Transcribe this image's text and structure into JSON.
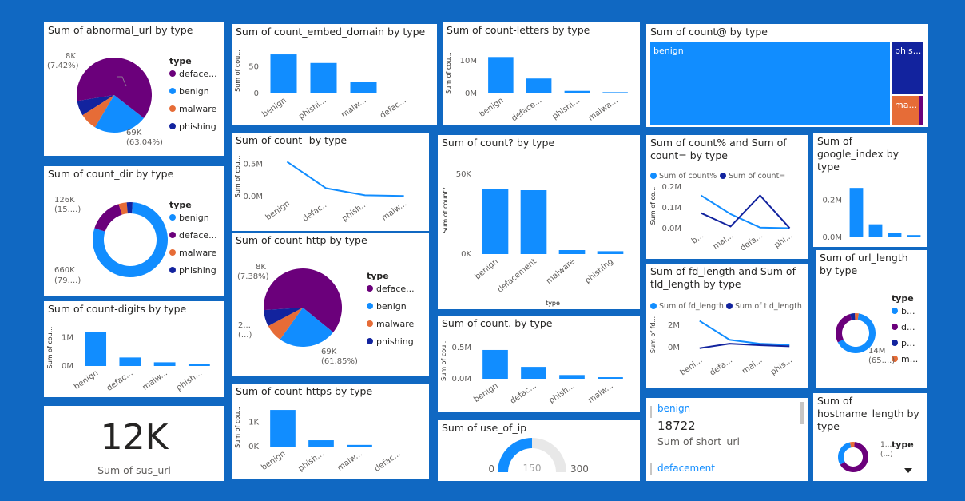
{
  "colors": {
    "purple": "#6b007b",
    "blue": "#118dff",
    "orange": "#e66c37",
    "navy": "#12239e",
    "axis": "#605e5c",
    "text": "#252423"
  },
  "chart_data": [
    {
      "id": "abnormal",
      "type": "pie",
      "title": "Sum of abnormal_url by type",
      "legend_title": "type",
      "legend": [
        "deface...",
        "benign",
        "malware",
        "phishing"
      ],
      "slices": [
        {
          "name": "defacement",
          "pct": 63.04
        },
        {
          "name": "benign",
          "pct": 23.0
        },
        {
          "name": "malware",
          "pct": 7.42
        },
        {
          "name": "phishing",
          "pct": 6.54
        }
      ],
      "labels": [
        {
          "v": "8K",
          "p": "(7.42%)"
        },
        {
          "v": "69K",
          "p": "(63.04%)"
        }
      ]
    },
    {
      "id": "dir",
      "type": "donut",
      "title": "Sum of count_dir by type",
      "legend_title": "type",
      "legend": [
        "benign",
        "deface...",
        "malware",
        "phishing"
      ],
      "slices": [
        {
          "name": "benign",
          "pct": 79.0
        },
        {
          "name": "defacement",
          "pct": 15.0
        },
        {
          "name": "malware",
          "pct": 3.5
        },
        {
          "name": "phishing",
          "pct": 2.5
        }
      ],
      "labels": [
        {
          "v": "126K",
          "p": "(15....)"
        },
        {
          "v": "660K",
          "p": "(79....)"
        }
      ]
    },
    {
      "id": "digits",
      "type": "bar",
      "title": "Sum of count-digits by type",
      "ylabel": "Sum of cou...",
      "categories": [
        "benign",
        "defac...",
        "malw...",
        "phish..."
      ],
      "values": [
        1.2,
        0.3,
        0.13,
        0.08
      ],
      "ylim": [
        0,
        1.3
      ],
      "ticks": [
        {
          "v": 0,
          "l": "0M"
        },
        {
          "v": 1,
          "l": "1M"
        }
      ]
    },
    {
      "id": "sus",
      "type": "kpi",
      "value": "12K",
      "label": "Sum of sus_url"
    },
    {
      "id": "embed",
      "type": "bar",
      "title": "Sum of count_embed_domain by type",
      "ylabel": "Sum of cou...",
      "categories": [
        "benign",
        "phishi...",
        "malw...",
        "defac..."
      ],
      "values": [
        73,
        57,
        21,
        0
      ],
      "ylim": [
        0,
        85
      ],
      "ticks": [
        {
          "v": 0,
          "l": "0"
        },
        {
          "v": 50,
          "l": "50"
        }
      ]
    },
    {
      "id": "dash",
      "type": "line",
      "title": "Sum of count- by type",
      "ylabel": "Sum of cou...",
      "categories": [
        "benign",
        "defac...",
        "phish...",
        "malw..."
      ],
      "values": [
        0.54,
        0.13,
        0.02,
        0.01
      ],
      "ylim": [
        0,
        0.62
      ],
      "ticks": [
        {
          "v": 0,
          "l": "0.0M"
        },
        {
          "v": 0.5,
          "l": "0.5M"
        }
      ]
    },
    {
      "id": "http",
      "type": "pie",
      "title": "Sum of count-http by type",
      "legend_title": "type",
      "legend": [
        "deface...",
        "benign",
        "malware",
        "phishing"
      ],
      "slices": [
        {
          "name": "defacement",
          "pct": 61.85
        },
        {
          "name": "benign",
          "pct": 24.0
        },
        {
          "name": "malware",
          "pct": 7.38
        },
        {
          "name": "phishing",
          "pct": 6.77
        }
      ],
      "labels": [
        {
          "v": "8K",
          "p": "(7.38%)"
        },
        {
          "v": "2...",
          "p": "(...)"
        },
        {
          "v": "69K",
          "p": "(61.85%)"
        }
      ]
    },
    {
      "id": "https",
      "type": "bar",
      "title": "Sum of count-https by type",
      "ylabel": "Sum of cou...",
      "categories": [
        "benign",
        "phish...",
        "malw...",
        "defac..."
      ],
      "values": [
        1.5,
        0.26,
        0.07,
        0
      ],
      "ylim": [
        0,
        1.6
      ],
      "ticks": [
        {
          "v": 0,
          "l": "0K"
        },
        {
          "v": 1,
          "l": "1K"
        }
      ]
    },
    {
      "id": "letters",
      "type": "bar",
      "title": "Sum of count-letters by type",
      "ylabel": "Sum of cou...",
      "categories": [
        "benign",
        "deface...",
        "phishi...",
        "malwa..."
      ],
      "values": [
        11.2,
        4.6,
        0.8,
        0.4
      ],
      "ylim": [
        0,
        12.5
      ],
      "ticks": [
        {
          "v": 0,
          "l": "0M"
        },
        {
          "v": 10,
          "l": "10M"
        }
      ]
    },
    {
      "id": "question",
      "type": "bar",
      "title": "Sum of count? by type",
      "ylabel": "Sum of count?",
      "xlabel": "type",
      "categories": [
        "benign",
        "defacement",
        "malware",
        "phishing"
      ],
      "values": [
        41,
        40,
        2.5,
        1.8
      ],
      "ylim": [
        0,
        55
      ],
      "ticks": [
        {
          "v": 0,
          "l": "0K"
        },
        {
          "v": 50,
          "l": "50K"
        }
      ]
    },
    {
      "id": "dot",
      "type": "bar",
      "title": "Sum of count. by type",
      "ylabel": "Sum of cou...",
      "categories": [
        "benign",
        "defac...",
        "phish...",
        "malw..."
      ],
      "values": [
        0.46,
        0.19,
        0.06,
        0.025
      ],
      "ylim": [
        0,
        0.6
      ],
      "ticks": [
        {
          "v": 0,
          "l": "0.0M"
        },
        {
          "v": 0.5,
          "l": "0.5M"
        }
      ]
    },
    {
      "id": "useip",
      "type": "gauge",
      "title": "Sum of use_of_ip",
      "min": "0",
      "max": "300",
      "value": "150",
      "fraction": 0.5
    },
    {
      "id": "at",
      "type": "treemap",
      "title": "Sum of count@ by type",
      "tiles": [
        {
          "label": "benign",
          "color": "#118dff"
        },
        {
          "label": "phis...",
          "color": "#12239e"
        },
        {
          "label": "ma...",
          "color": "#e66c37"
        },
        {
          "label": "",
          "color": "#6b007b"
        }
      ]
    },
    {
      "id": "pcteq",
      "type": "line",
      "title": "Sum of count% and Sum of count= by type",
      "ylabel": "Sum of co...",
      "categories": [
        "b...",
        "mal...",
        "defa...",
        "phi..."
      ],
      "series": [
        {
          "name": "Sum of count%",
          "values": [
            0.16,
            0.07,
            0.005,
            0.002
          ]
        },
        {
          "name": "Sum of count=",
          "values": [
            0.075,
            0.01,
            0.16,
            0.002
          ]
        }
      ],
      "ylim": [
        0,
        0.22
      ],
      "ticks": [
        {
          "v": 0,
          "l": "0.0M"
        },
        {
          "v": 0.1,
          "l": "0.1M"
        },
        {
          "v": 0.2,
          "l": "0.2M"
        }
      ]
    },
    {
      "id": "google",
      "type": "bar",
      "title": "Sum of google_index by type",
      "categories": [
        "",
        "",
        "",
        ""
      ],
      "values": [
        0.265,
        0.07,
        0.025,
        0.012
      ],
      "ylim": [
        0,
        0.3
      ],
      "ticks": [
        {
          "v": 0,
          "l": "0.0M"
        },
        {
          "v": 0.2,
          "l": "0.2M"
        }
      ]
    },
    {
      "id": "fdtld",
      "type": "line",
      "title": "Sum of fd_length and Sum of tld_length by type",
      "ylabel": "Sum of fd...",
      "categories": [
        "beni...",
        "defa...",
        "mal...",
        "phis..."
      ],
      "series": [
        {
          "name": "Sum of fd_length",
          "values": [
            2.4,
            0.7,
            0.35,
            0.25
          ]
        },
        {
          "name": "Sum of tld_length",
          "values": [
            -0.05,
            0.35,
            0.22,
            0.12
          ]
        }
      ],
      "ylim": [
        -0.5,
        2.8
      ],
      "ticks": [
        {
          "v": 0,
          "l": "0M"
        },
        {
          "v": 2,
          "l": "2M"
        }
      ]
    },
    {
      "id": "urllen",
      "type": "donut",
      "title": "Sum of url_length by type",
      "legend_title": "type",
      "legend": [
        "b...",
        "d...",
        "p...",
        "m..."
      ],
      "slices": [
        {
          "name": "benign",
          "pct": 65
        },
        {
          "name": "defacement",
          "pct": 28
        },
        {
          "name": "phishing",
          "pct": 4
        },
        {
          "name": "malware",
          "pct": 3
        }
      ],
      "labels": [
        {
          "v": "14M",
          "p": "(65....)"
        }
      ]
    },
    {
      "id": "shorturl",
      "type": "table",
      "rows": [
        {
          "label": "benign",
          "value": "18722",
          "caption": "Sum of short_url"
        },
        {
          "label": "defacement",
          "value": "",
          "caption": ""
        }
      ]
    },
    {
      "id": "hostlen",
      "type": "donut",
      "title": "Sum of hostname_length by type",
      "legend_title": "type",
      "slices": [
        {
          "name": "defacement",
          "pct": 65
        },
        {
          "name": "benign",
          "pct": 30
        },
        {
          "name": "malware",
          "pct": 5
        }
      ],
      "labels": [
        {
          "v": "1...",
          "p": "(...)"
        }
      ]
    }
  ]
}
